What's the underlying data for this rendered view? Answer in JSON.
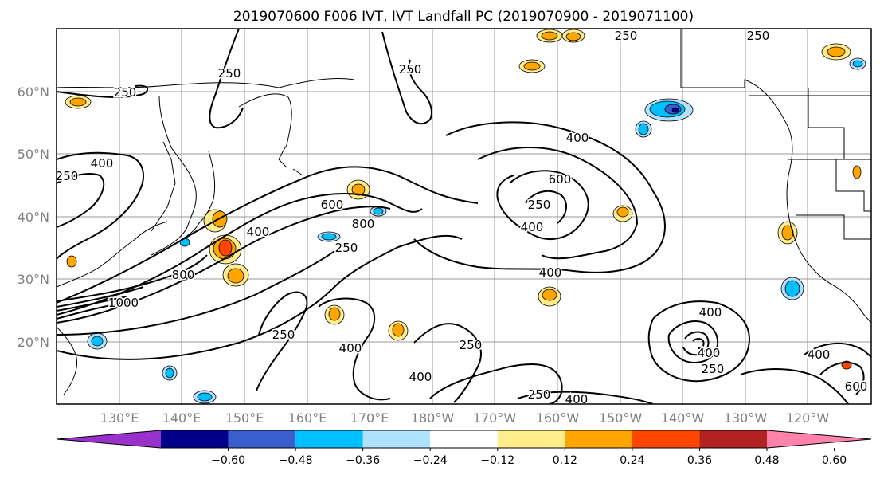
{
  "title": "2019070600 F006 IVT, IVT Landfall PC (2019070900 - 2019071100)",
  "lat_labels": [
    "60°N",
    "50°N",
    "40°N",
    "30°N",
    "20°N"
  ],
  "lon_labels": [
    "130°E",
    "140°E",
    "150°E",
    "160°E",
    "170°E",
    "180°W",
    "170°W",
    "160°W",
    "150°W",
    "140°W",
    "130°W",
    "120°W"
  ],
  "colorbar": {
    "ticks": [
      "−0.60",
      "−0.48",
      "−0.36",
      "−0.24",
      "−0.12",
      "0.12",
      "0.24",
      "0.36",
      "0.48",
      "0.60"
    ],
    "colors": [
      "#9932cc",
      "#00008b",
      "#3a5fcd",
      "#00bfff",
      "#b0e2ff",
      "#ffffff",
      "#ffec8b",
      "#ffa500",
      "#ff4500",
      "#b22222",
      "#ff82ab"
    ]
  },
  "contour_labels": [
    "250",
    "250",
    "250",
    "250",
    "250",
    "250",
    "250",
    "250",
    "250",
    "250",
    "250",
    "250",
    "400",
    "400",
    "400",
    "400",
    "400",
    "400",
    "400",
    "400",
    "400",
    "400",
    "400",
    "600",
    "600",
    "600",
    "800",
    "800",
    "1000"
  ],
  "colors": {
    "contour": "#000000",
    "coast": "#000000",
    "grid": "#999999",
    "label_gray": "#808080"
  }
}
